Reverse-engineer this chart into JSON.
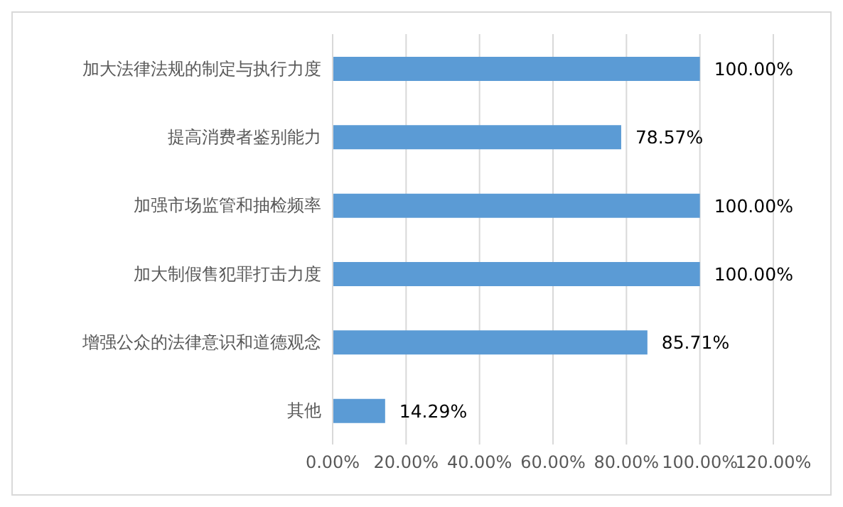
{
  "chart_data": {
    "type": "bar",
    "orientation": "horizontal",
    "categories": [
      "加大法律法规的制定与执行力度",
      "提高消费者鉴别能力",
      "加强市场监管和抽检频率",
      "加大制假售犯罪打击力度",
      "增强公众的法律意识和道德观念",
      "其他"
    ],
    "values": [
      100,
      78.57,
      100,
      100,
      85.71,
      14.29
    ],
    "value_labels": [
      "100.00%",
      "78.57%",
      "100.00%",
      "100.00%",
      "85.71%",
      "14.29%"
    ],
    "color": "#5b9bd5",
    "xlim": [
      0,
      120
    ],
    "xticks": [
      {
        "value": 0,
        "label": "0.00%"
      },
      {
        "value": 20,
        "label": "20.00%"
      },
      {
        "value": 40,
        "label": "40.00%"
      },
      {
        "value": 60,
        "label": "60.00%"
      },
      {
        "value": 80,
        "label": "80.00%"
      },
      {
        "value": 100,
        "label": "100.00%"
      },
      {
        "value": 120,
        "label": "120.00%"
      }
    ],
    "grid": "x",
    "legend": false
  }
}
